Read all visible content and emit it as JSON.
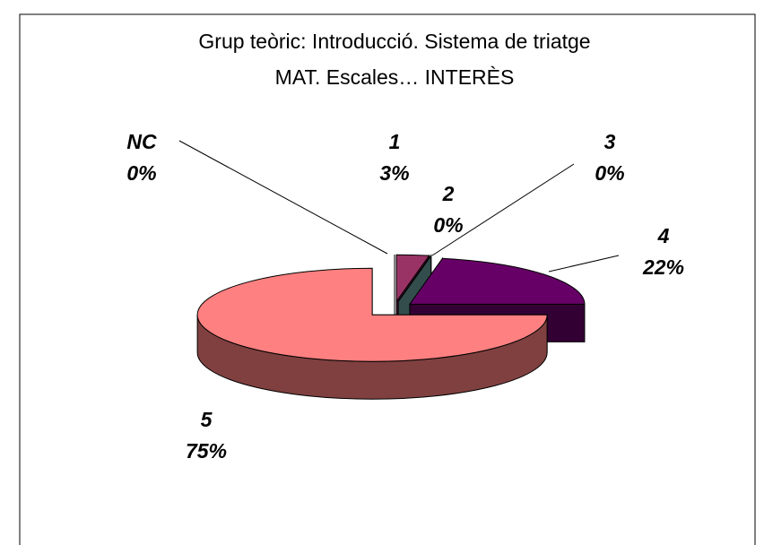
{
  "chart_data": {
    "type": "pie",
    "title": [
      "Grup teòric: Introducció. Sistema de triatge",
      "MAT. Escales… INTERÈS"
    ],
    "categories": [
      "NC",
      "1",
      "2",
      "3",
      "4",
      "5"
    ],
    "values": [
      0,
      3,
      0,
      0,
      22,
      75
    ],
    "value_labels": [
      "0%",
      "3%",
      "0%",
      "0%",
      "22%",
      "75%"
    ],
    "colors": [
      "#ccccff",
      "#993366",
      "#ffffcc",
      "#669999",
      "#660066",
      "#ff8080"
    ]
  }
}
